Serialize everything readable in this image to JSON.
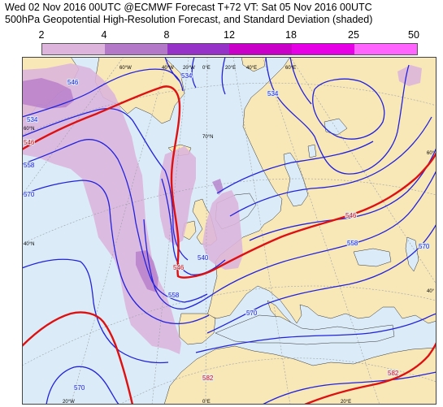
{
  "header": {
    "line1": "Wed 02 Nov 2016 00UTC @ECMWF Forecast T+72 VT: Sat 05 Nov 2016 00UTC",
    "line2": "500hPa Geopotential High-Resolution Forecast, and Standard Deviation (shaded)"
  },
  "legend": {
    "labels": [
      "2",
      "4",
      "8",
      "12",
      "18",
      "25",
      "50"
    ],
    "colors": [
      "#dcb4dc",
      "#b478c8",
      "#9632c8",
      "#c800c8",
      "#e600e6",
      "#ff64ff"
    ]
  },
  "map": {
    "colors": {
      "sea": "#dbecf8",
      "land": "#f8e8b8",
      "blue_contour": "#2222dd",
      "red_contour": "#dd1111",
      "grid": "#9aa0a8"
    },
    "top_lon_labels": [
      "60°W",
      "40°W",
      "20°W",
      "0°E",
      "20°E",
      "40°E",
      "60°E"
    ],
    "bottom_lon_labels": [
      "20°W",
      "0°E",
      "20°E"
    ],
    "left_lat_labels": [
      "60°N",
      "40°N"
    ],
    "right_lat_labels": [
      "60°",
      "40°"
    ],
    "inner_lat_label": "70°N",
    "contour_labels": {
      "l534_left": "534",
      "l546_left": "546",
      "l558_left": "558",
      "l570_left": "570",
      "l534_top": "534",
      "l546_top": "546",
      "l534_ne": "534",
      "l546_mid": "546",
      "l546_center": "546",
      "l558_center": "558",
      "l558_east": "558",
      "l570_east": "570",
      "l570_south": "570",
      "l570_sw": "570",
      "l582_south": "582",
      "l582_se": "582",
      "l540_small": "540"
    }
  }
}
